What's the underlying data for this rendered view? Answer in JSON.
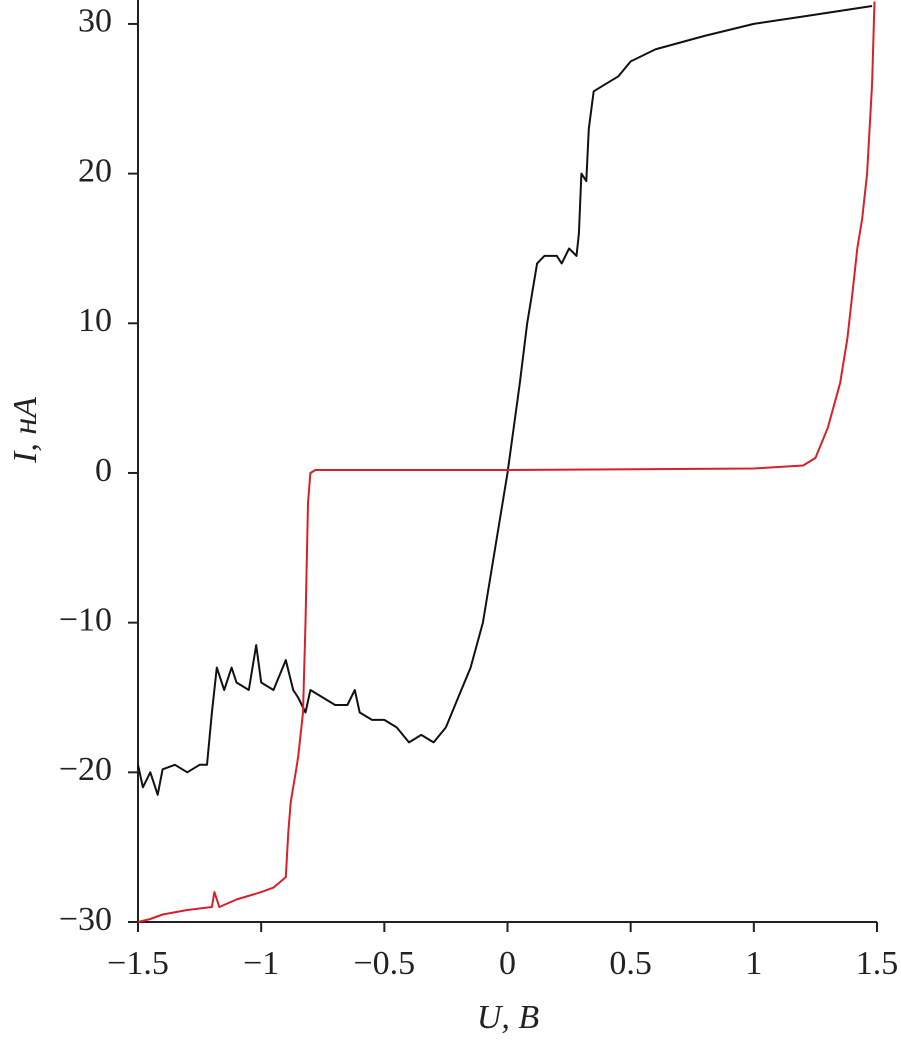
{
  "chart_data": {
    "type": "line",
    "xlabel": "U, В",
    "ylabel": "I, нА",
    "xlim": [
      -1.5,
      1.5
    ],
    "ylim": [
      -30,
      31.6
    ],
    "xticks": [
      {
        "value": -1.5,
        "label": "−1.5"
      },
      {
        "value": -1,
        "label": "−1"
      },
      {
        "value": -0.5,
        "label": "−0.5"
      },
      0,
      0.5,
      1,
      1.5
    ],
    "yticks": [
      {
        "value": -30,
        "label": "−30"
      },
      {
        "value": -20,
        "label": "−20"
      },
      {
        "value": -10,
        "label": "−10"
      },
      0,
      10,
      20,
      30
    ],
    "series": [
      {
        "color": "#111111",
        "x": [
          -1.5,
          -1.48,
          -1.45,
          -1.42,
          -1.4,
          -1.35,
          -1.3,
          -1.25,
          -1.22,
          -1.2,
          -1.18,
          -1.15,
          -1.12,
          -1.1,
          -1.05,
          -1.02,
          -1.0,
          -0.95,
          -0.9,
          -0.87,
          -0.85,
          -0.82,
          -0.8,
          -0.75,
          -0.7,
          -0.65,
          -0.62,
          -0.6,
          -0.55,
          -0.5,
          -0.45,
          -0.4,
          -0.35,
          -0.3,
          -0.25,
          -0.2,
          -0.15,
          -0.1,
          -0.05,
          0,
          0.05,
          0.08,
          0.1,
          0.12,
          0.15,
          0.2,
          0.22,
          0.25,
          0.28,
          0.29,
          0.3,
          0.32,
          0.33,
          0.35,
          0.4,
          0.45,
          0.5,
          0.6,
          0.8,
          1.0,
          1.2,
          1.4,
          1.48
        ],
        "values": [
          -19.5,
          -21,
          -20,
          -21.5,
          -19.8,
          -19.5,
          -20,
          -19.5,
          -19.5,
          -16,
          -13,
          -14.5,
          -13,
          -14,
          -14.5,
          -11.5,
          -14,
          -14.5,
          -12.5,
          -14.5,
          -15,
          -16,
          -14.5,
          -15,
          -15.5,
          -15.5,
          -14.5,
          -16,
          -16.5,
          -16.5,
          -17,
          -18,
          -17.5,
          -18,
          -17,
          -15,
          -13,
          -10,
          -5,
          0,
          6,
          10,
          12,
          14,
          14.5,
          14.5,
          14,
          15,
          14.5,
          16,
          20,
          19.5,
          23,
          25.5,
          26,
          26.5,
          27.5,
          28.3,
          29.2,
          30,
          30.5,
          31,
          31.2
        ]
      },
      {
        "color": "#d6212a",
        "x": [
          -1.5,
          -1.45,
          -1.4,
          -1.3,
          -1.2,
          -1.19,
          -1.17,
          -1.1,
          -1.0,
          -0.95,
          -0.9,
          -0.89,
          -0.88,
          -0.86,
          -0.85,
          -0.83,
          -0.82,
          -0.81,
          -0.8,
          -0.78,
          0,
          1.0,
          1.2,
          1.25,
          1.3,
          1.35,
          1.38,
          1.4,
          1.42,
          1.44,
          1.46,
          1.48,
          1.49
        ],
        "values": [
          -30,
          -29.8,
          -29.5,
          -29.2,
          -29,
          -28,
          -29,
          -28.5,
          -28,
          -27.7,
          -27,
          -24,
          -22,
          -20,
          -19,
          -16,
          -10,
          -2,
          0,
          0.2,
          0.2,
          0.3,
          0.5,
          1,
          3,
          6,
          9,
          12,
          15,
          17,
          20,
          26,
          31.5
        ]
      }
    ]
  }
}
